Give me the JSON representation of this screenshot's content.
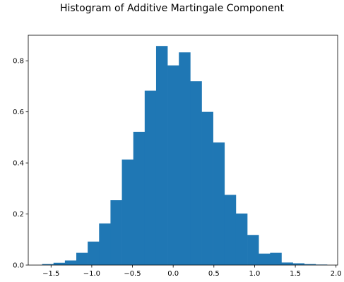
{
  "chart_data": {
    "type": "bar",
    "title": "Histogram of Additive Martingale Component",
    "xlabel": "",
    "ylabel": "",
    "xlim": [
      -1.78,
      2.02
    ],
    "ylim": [
      0,
      0.9
    ],
    "x_ticks": [
      -1.5,
      -1.0,
      -0.5,
      0.0,
      0.5,
      1.0,
      1.5,
      2.0
    ],
    "y_ticks": [
      0.0,
      0.2,
      0.4,
      0.6,
      0.8
    ],
    "bar_color": "#1f77b4",
    "bins": [
      {
        "x0": -1.61,
        "x1": -1.47,
        "height": 0.004
      },
      {
        "x0": -1.47,
        "x1": -1.33,
        "height": 0.009
      },
      {
        "x0": -1.33,
        "x1": -1.19,
        "height": 0.018
      },
      {
        "x0": -1.19,
        "x1": -1.05,
        "height": 0.048
      },
      {
        "x0": -1.05,
        "x1": -0.91,
        "height": 0.092
      },
      {
        "x0": -0.91,
        "x1": -0.77,
        "height": 0.163
      },
      {
        "x0": -0.77,
        "x1": -0.63,
        "height": 0.254
      },
      {
        "x0": -0.63,
        "x1": -0.49,
        "height": 0.413
      },
      {
        "x0": -0.49,
        "x1": -0.35,
        "height": 0.522
      },
      {
        "x0": -0.35,
        "x1": -0.21,
        "height": 0.683
      },
      {
        "x0": -0.21,
        "x1": -0.07,
        "height": 0.858
      },
      {
        "x0": -0.07,
        "x1": 0.07,
        "height": 0.782
      },
      {
        "x0": 0.07,
        "x1": 0.21,
        "height": 0.833
      },
      {
        "x0": 0.21,
        "x1": 0.35,
        "height": 0.72
      },
      {
        "x0": 0.35,
        "x1": 0.49,
        "height": 0.6
      },
      {
        "x0": 0.49,
        "x1": 0.63,
        "height": 0.48
      },
      {
        "x0": 0.63,
        "x1": 0.77,
        "height": 0.275
      },
      {
        "x0": 0.77,
        "x1": 0.91,
        "height": 0.202
      },
      {
        "x0": 0.91,
        "x1": 1.05,
        "height": 0.118
      },
      {
        "x0": 1.05,
        "x1": 1.19,
        "height": 0.045
      },
      {
        "x0": 1.19,
        "x1": 1.33,
        "height": 0.048
      },
      {
        "x0": 1.33,
        "x1": 1.47,
        "height": 0.01
      },
      {
        "x0": 1.47,
        "x1": 1.61,
        "height": 0.007
      },
      {
        "x0": 1.61,
        "x1": 1.75,
        "height": 0.004
      },
      {
        "x0": 1.75,
        "x1": 1.89,
        "height": 0.002
      }
    ]
  }
}
